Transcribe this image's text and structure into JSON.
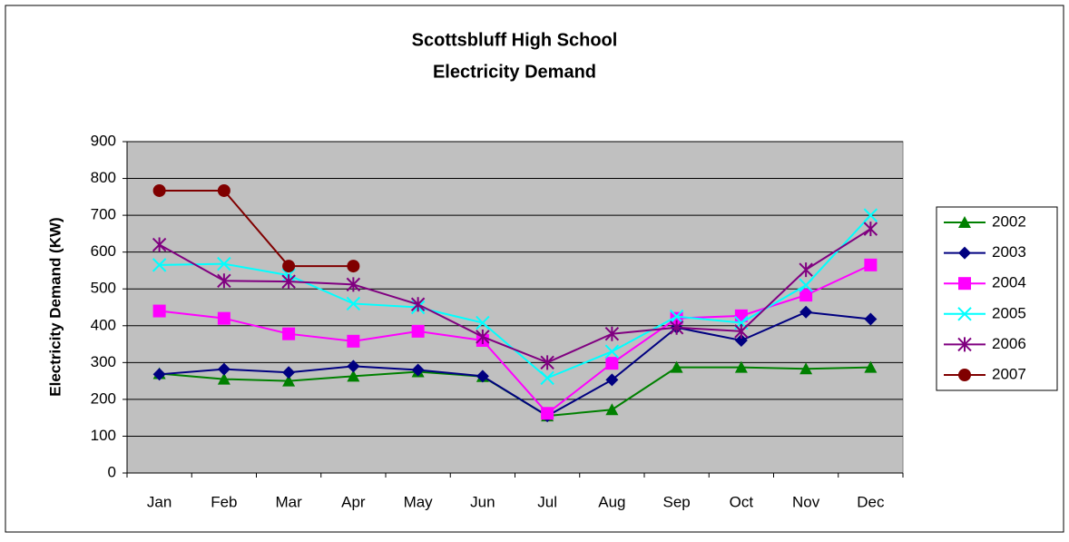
{
  "chart_data": {
    "type": "line",
    "title": "Scottsbluff High School",
    "subtitle": "Electricity Demand",
    "y_label": "Electricity  Demand (KW)",
    "categories": [
      "Jan",
      "Feb",
      "Mar",
      "Apr",
      "May",
      "Jun",
      "Jul",
      "Aug",
      "Sep",
      "Oct",
      "Nov",
      "Dec"
    ],
    "series": [
      {
        "name": "2002",
        "color": "#008000",
        "marker": "triangle",
        "values": [
          270,
          255,
          250,
          263,
          275,
          262,
          155,
          172,
          287,
          287,
          283,
          287
        ]
      },
      {
        "name": "2003",
        "color": "#000080",
        "marker": "diamond",
        "values": [
          268,
          282,
          273,
          290,
          280,
          263,
          155,
          253,
          395,
          360,
          437,
          418
        ]
      },
      {
        "name": "2004",
        "color": "#ff00ff",
        "marker": "square",
        "values": [
          440,
          420,
          378,
          358,
          385,
          360,
          162,
          298,
          420,
          427,
          483,
          565
        ]
      },
      {
        "name": "2005",
        "color": "#00ffff",
        "marker": "x",
        "values": [
          565,
          568,
          537,
          460,
          450,
          408,
          258,
          330,
          425,
          408,
          510,
          700
        ]
      },
      {
        "name": "2006",
        "color": "#800080",
        "marker": "star",
        "values": [
          620,
          522,
          520,
          512,
          458,
          370,
          300,
          378,
          395,
          385,
          552,
          663
        ]
      },
      {
        "name": "2007",
        "color": "#800000",
        "marker": "circle",
        "values": [
          767,
          767,
          562,
          562,
          null,
          null,
          null,
          null,
          null,
          null,
          null,
          null
        ]
      }
    ],
    "ylim": [
      0,
      900
    ],
    "yticks": [
      0,
      100,
      200,
      300,
      400,
      500,
      600,
      700,
      800,
      900
    ],
    "grid": true,
    "plot_background": "#c0c0c0",
    "legend": "right"
  }
}
